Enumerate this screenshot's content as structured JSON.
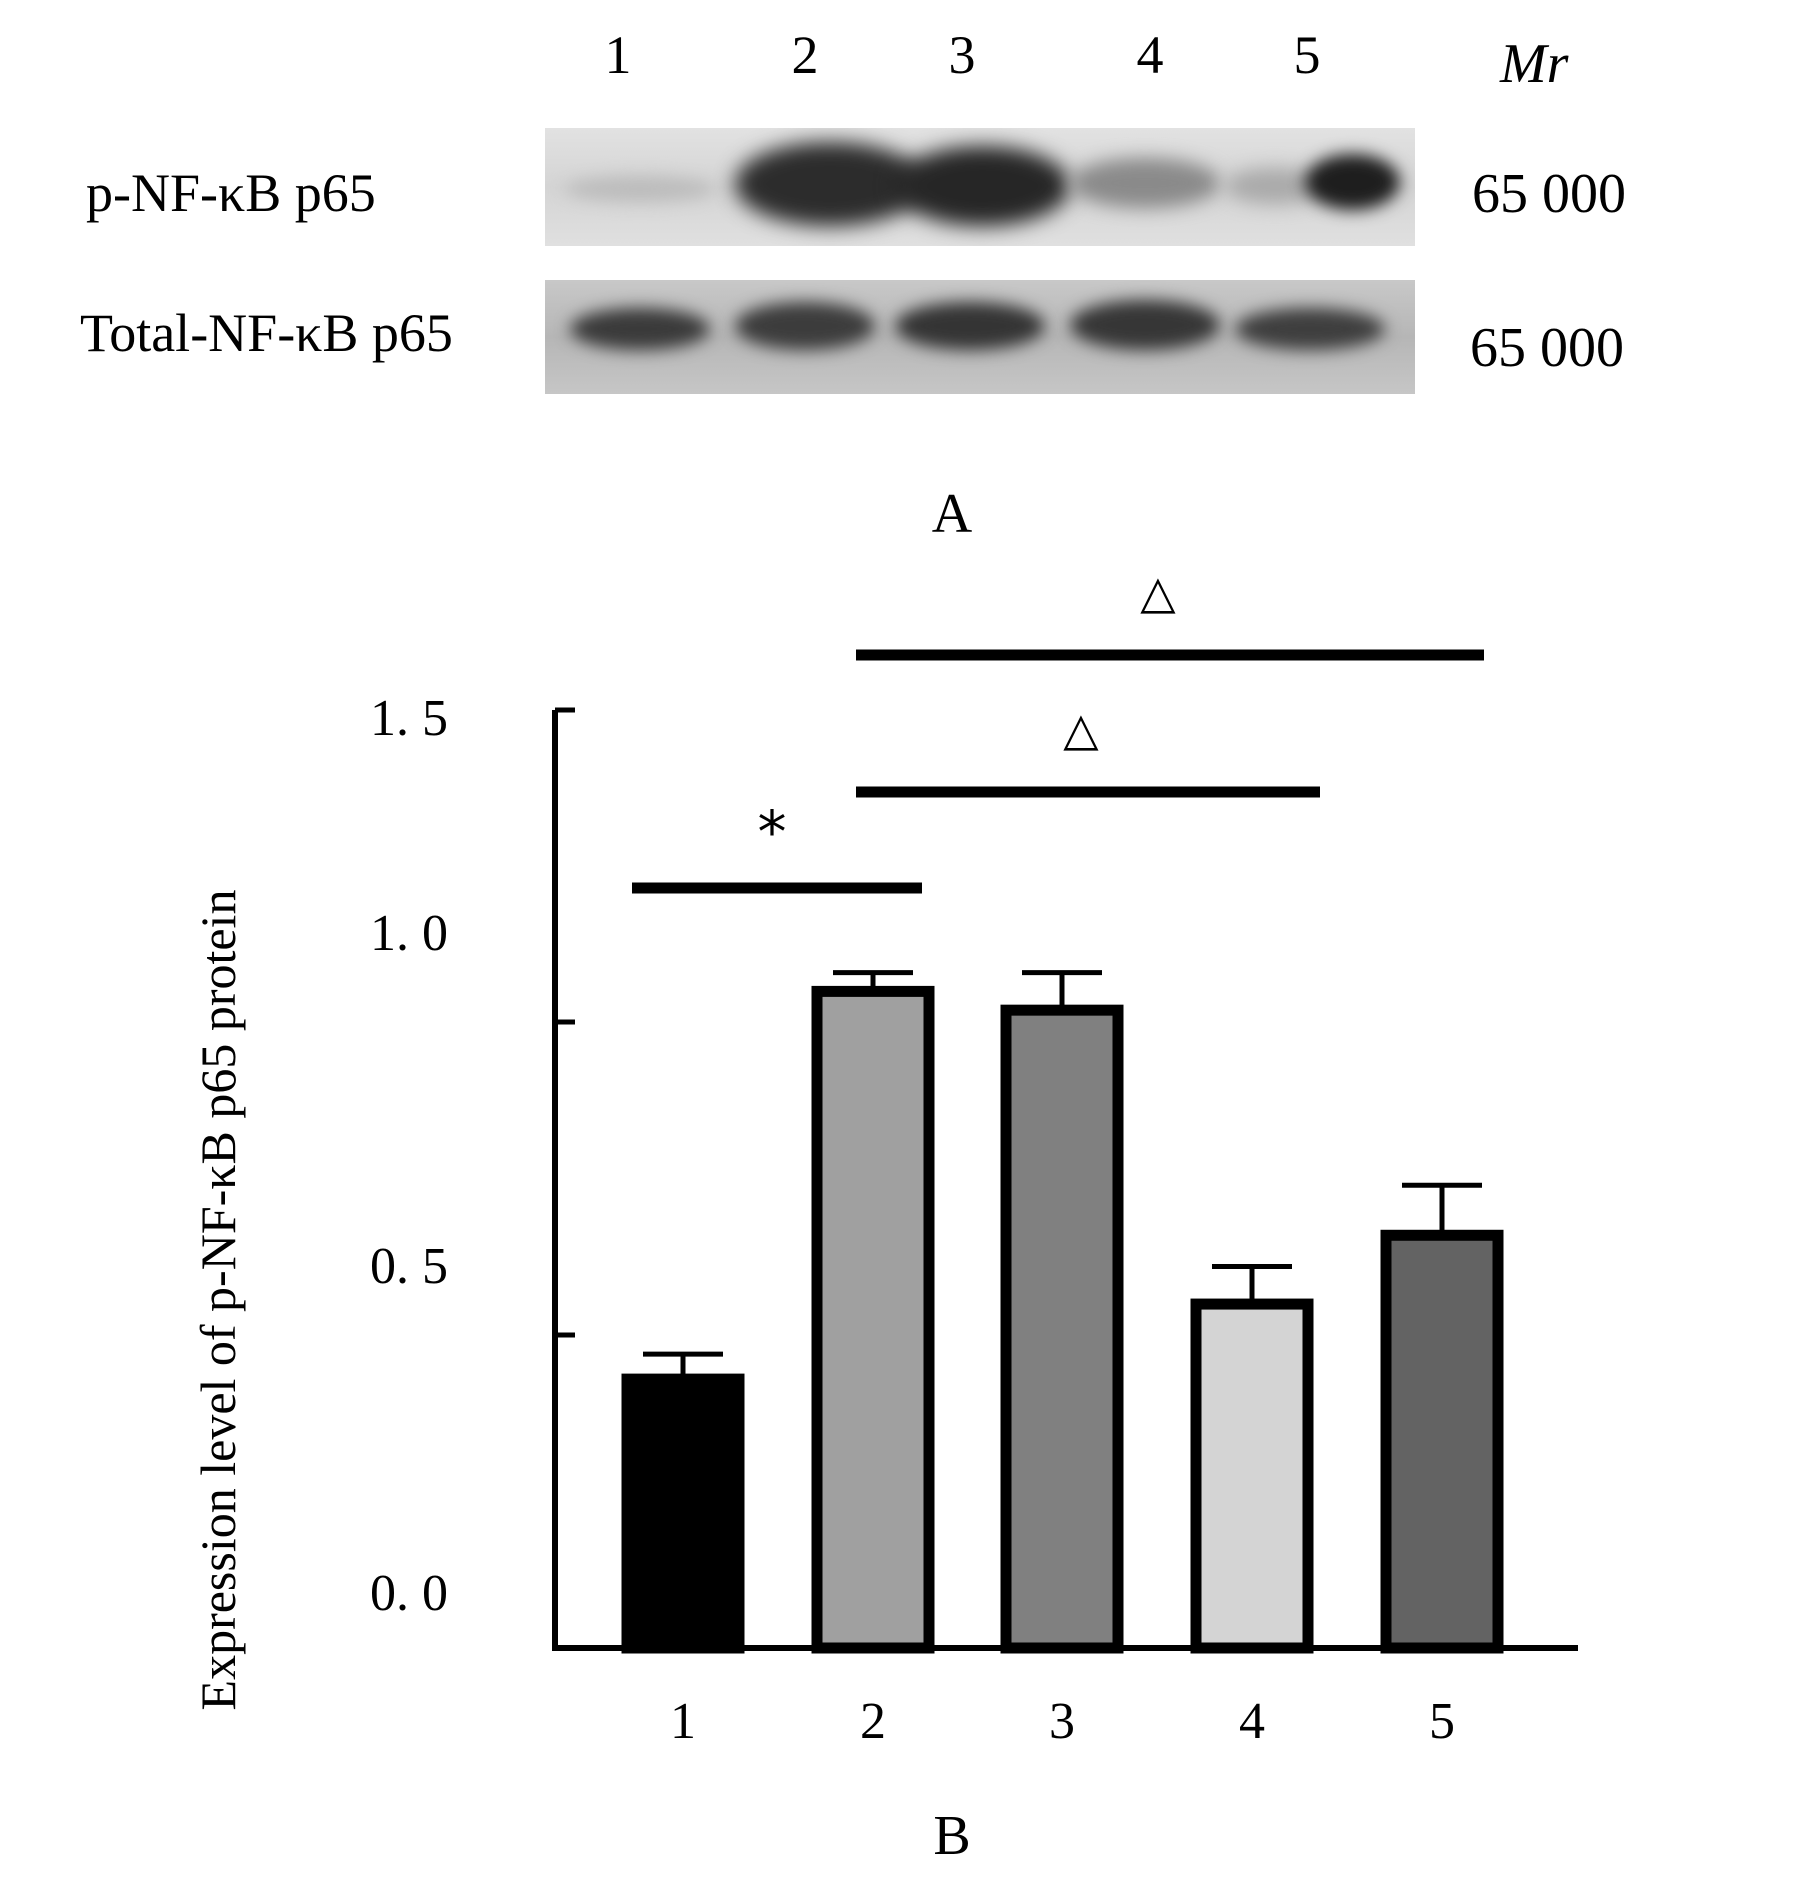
{
  "blot": {
    "lanes": [
      "1",
      "2",
      "3",
      "4",
      "5"
    ],
    "mr_label": "Mr",
    "rows": [
      {
        "label": "p-NF-κB p65",
        "mw": "65  000"
      },
      {
        "label": "Total-NF-κB p65",
        "mw": "65  000"
      }
    ],
    "panel_label": "A"
  },
  "chart_data": {
    "type": "bar",
    "categories": [
      "1",
      "2",
      "3",
      "4",
      "5"
    ],
    "values": [
      0.43,
      1.05,
      1.02,
      0.55,
      0.66
    ],
    "errors": [
      0.04,
      0.03,
      0.06,
      0.06,
      0.08
    ],
    "bar_colors": [
      "#000000",
      "#a0a0a0",
      "#808080",
      "#d4d4d4",
      "#636363"
    ],
    "ylabel": "Expression level of p-NF-κB p65 protein",
    "yticks": [
      "0. 0",
      "0. 5",
      "1. 0",
      "1. 5"
    ],
    "ytick_values": [
      0,
      0.5,
      1.0,
      1.5
    ],
    "ylim": [
      0,
      1.5
    ],
    "significance": [
      {
        "from": "1",
        "to": "2",
        "symbol": "*"
      },
      {
        "from": "2",
        "to": "4",
        "symbol": "△"
      },
      {
        "from": "2",
        "to": "5",
        "symbol": "△"
      }
    ],
    "panel_label": "B"
  }
}
